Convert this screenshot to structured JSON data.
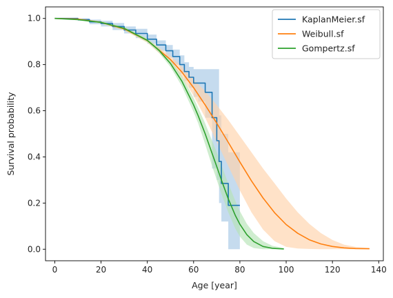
{
  "chart_data": {
    "type": "line",
    "xlabel": "Age [year]",
    "ylabel": "Survival probability",
    "xlim": [
      -4,
      142
    ],
    "ylim": [
      -0.05,
      1.05
    ],
    "xticks": [
      0,
      20,
      40,
      60,
      80,
      100,
      120,
      140
    ],
    "yticks": [
      0.0,
      0.2,
      0.4,
      0.6,
      0.8,
      1.0
    ],
    "xtick_labels": [
      "0",
      "20",
      "40",
      "60",
      "80",
      "100",
      "120",
      "140"
    ],
    "ytick_labels": [
      "0.0",
      "0.2",
      "0.4",
      "0.6",
      "0.8",
      "1.0"
    ],
    "grid": false,
    "legend_position": "top-right",
    "series": [
      {
        "name": "KaplanMeier.sf",
        "color": "#1f77b4",
        "band_color": "#a6c8e5",
        "style": "step",
        "x": [
          0,
          10,
          15,
          20,
          25,
          30,
          35,
          40,
          44,
          48,
          51,
          54,
          56,
          58,
          60,
          62,
          65,
          68,
          70,
          71,
          72,
          75,
          80
        ],
        "y": [
          1.0,
          0.995,
          0.985,
          0.978,
          0.965,
          0.95,
          0.935,
          0.91,
          0.885,
          0.86,
          0.835,
          0.8,
          0.77,
          0.745,
          0.72,
          0.72,
          0.68,
          0.57,
          0.47,
          0.38,
          0.285,
          0.19,
          0.19
        ],
        "lower": [
          1.0,
          0.99,
          0.975,
          0.965,
          0.95,
          0.935,
          0.915,
          0.89,
          0.86,
          0.83,
          0.8,
          0.76,
          0.73,
          0.7,
          0.66,
          0.64,
          0.57,
          0.35,
          0.3,
          0.2,
          0.12,
          0.0,
          0.0
        ],
        "upper": [
          1.0,
          1.0,
          0.995,
          0.99,
          0.98,
          0.965,
          0.955,
          0.93,
          0.905,
          0.885,
          0.865,
          0.84,
          0.81,
          0.79,
          0.78,
          0.78,
          0.78,
          0.78,
          0.78,
          0.58,
          0.5,
          0.42,
          0.42
        ]
      },
      {
        "name": "Weibull.sf",
        "color": "#ff7f0e",
        "band_color": "#ffd2aa",
        "style": "line",
        "x": [
          0,
          10,
          20,
          30,
          40,
          50,
          55,
          60,
          65,
          70,
          75,
          80,
          85,
          90,
          95,
          100,
          105,
          110,
          115,
          120,
          125,
          130,
          136
        ],
        "y": [
          1.0,
          0.997,
          0.983,
          0.955,
          0.904,
          0.822,
          0.767,
          0.7,
          0.625,
          0.546,
          0.463,
          0.378,
          0.296,
          0.222,
          0.158,
          0.107,
          0.069,
          0.041,
          0.023,
          0.012,
          0.006,
          0.003,
          0.002
        ],
        "lower": [
          1.0,
          0.995,
          0.978,
          0.948,
          0.895,
          0.805,
          0.745,
          0.665,
          0.57,
          0.465,
          0.36,
          0.255,
          0.16,
          0.085,
          0.035,
          0.01,
          0.003,
          0.001,
          0.0,
          0.0,
          0.0,
          0.0,
          0.0
        ],
        "upper": [
          1.0,
          0.999,
          0.988,
          0.962,
          0.912,
          0.838,
          0.79,
          0.735,
          0.685,
          0.625,
          0.56,
          0.49,
          0.42,
          0.35,
          0.285,
          0.22,
          0.16,
          0.11,
          0.07,
          0.04,
          0.02,
          0.01,
          0.005
        ]
      },
      {
        "name": "Gompertz.sf",
        "color": "#2ca02c",
        "band_color": "#b5e3b5",
        "style": "line",
        "x": [
          0,
          10,
          20,
          30,
          40,
          45,
          50,
          55,
          60,
          62,
          65,
          68,
          70,
          72,
          75,
          78,
          80,
          83,
          86,
          90,
          94,
          99
        ],
        "y": [
          1.0,
          0.995,
          0.983,
          0.957,
          0.905,
          0.862,
          0.805,
          0.727,
          0.625,
          0.578,
          0.5,
          0.415,
          0.358,
          0.3,
          0.218,
          0.147,
          0.108,
          0.063,
          0.033,
          0.012,
          0.004,
          0.001
        ],
        "lower": [
          1.0,
          0.993,
          0.978,
          0.95,
          0.897,
          0.852,
          0.79,
          0.705,
          0.595,
          0.545,
          0.455,
          0.36,
          0.3,
          0.24,
          0.16,
          0.09,
          0.055,
          0.02,
          0.005,
          0.0,
          0.0,
          0.0
        ],
        "upper": [
          1.0,
          0.997,
          0.988,
          0.964,
          0.913,
          0.872,
          0.82,
          0.75,
          0.655,
          0.612,
          0.545,
          0.47,
          0.42,
          0.365,
          0.285,
          0.21,
          0.165,
          0.11,
          0.07,
          0.035,
          0.015,
          0.005
        ]
      }
    ]
  }
}
